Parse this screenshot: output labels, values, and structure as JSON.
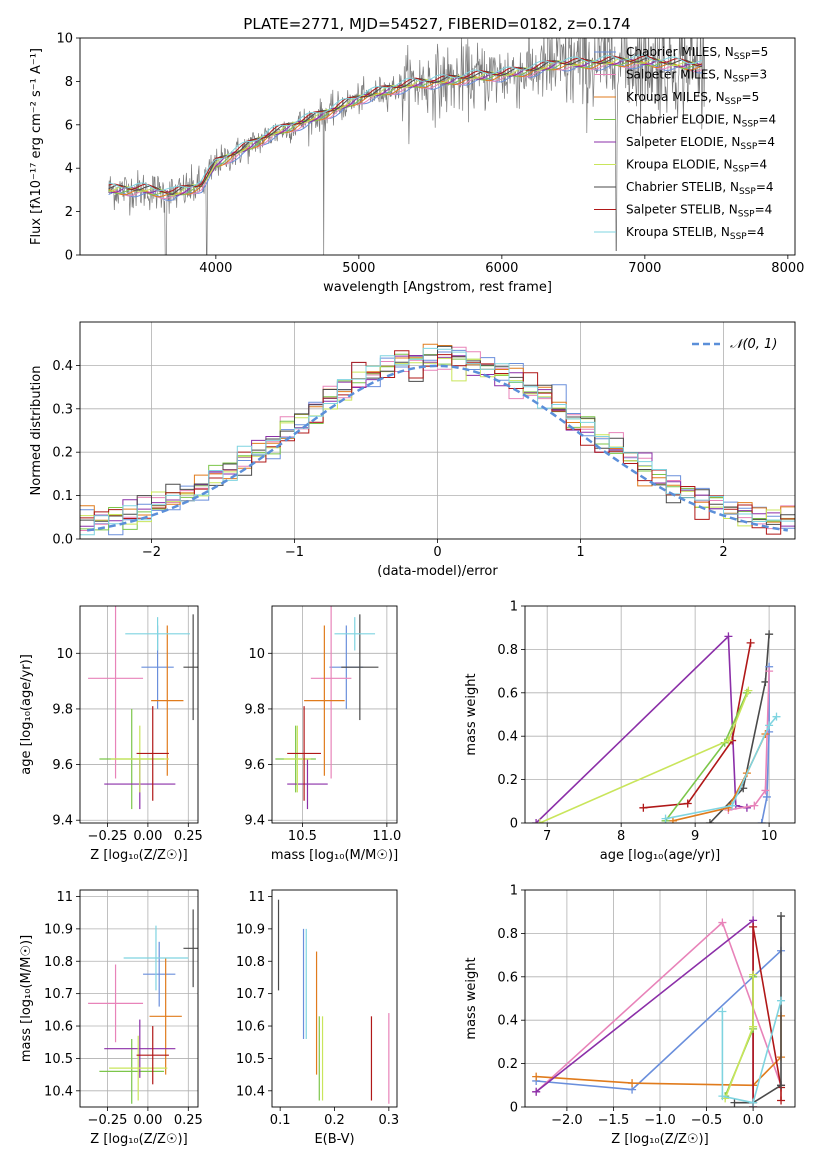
{
  "figure_title": "PLATE=2771, MJD=54527, FIBERID=0182, z=0.174",
  "colors": {
    "Chabrier MILES": "#6a8fdc",
    "Salpeter MILES": "#e883b9",
    "Kroupa MILES": "#e07b1c",
    "Chabrier ELODIE": "#7cc64a",
    "Salpeter ELODIE": "#8b2fa8",
    "Kroupa ELODIE": "#c9e55b",
    "Chabrier STELIB": "#4a4a4a",
    "Salpeter STELIB": "#b01818",
    "Kroupa STELIB": "#7fd4e0",
    "gauss": "#5b8fd9",
    "data": "#7a7a7a"
  },
  "chart_data": [
    {
      "id": "spectrum",
      "type": "line",
      "xlabel": "wavelength [Angstrom, rest frame]",
      "ylabel": "Flux [fλ10⁻¹⁷ erg cm⁻² s⁻¹ A⁻¹]",
      "xlim": [
        3050,
        8050
      ],
      "ylim": [
        0,
        10
      ],
      "xticks": [
        4000,
        5000,
        6000,
        7000,
        8000
      ],
      "yticks": [
        0,
        2,
        4,
        6,
        8,
        10
      ],
      "legend_position": "top-right",
      "legend": [
        {
          "name": "Chabrier MILES",
          "ssp": "5"
        },
        {
          "name": "Salpeter MILES",
          "ssp": "3"
        },
        {
          "name": "Kroupa MILES",
          "ssp": "5"
        },
        {
          "name": "Chabrier ELODIE",
          "ssp": "4"
        },
        {
          "name": "Salpeter ELODIE",
          "ssp": "4"
        },
        {
          "name": "Kroupa ELODIE",
          "ssp": "4"
        },
        {
          "name": "Chabrier STELIB",
          "ssp": "4"
        },
        {
          "name": "Salpeter STELIB",
          "ssp": "4"
        },
        {
          "name": "Kroupa STELIB",
          "ssp": "4"
        }
      ],
      "continuum": {
        "x": [
          3250,
          3500,
          3700,
          3900,
          4000,
          4200,
          4400,
          4600,
          4800,
          5000,
          5200,
          5400,
          5600,
          5800,
          6000,
          6200,
          6400,
          6600,
          6800,
          7000,
          7200,
          7400
        ],
        "y": [
          3.0,
          3.0,
          2.8,
          3.2,
          4.2,
          4.9,
          5.6,
          6.1,
          6.6,
          7.2,
          7.6,
          7.9,
          8.0,
          8.2,
          8.3,
          8.5,
          8.8,
          8.8,
          8.9,
          8.9,
          8.8,
          8.7
        ]
      }
    },
    {
      "id": "residual-histogram",
      "type": "bar",
      "xlabel": "(data-model)/error",
      "ylabel": "Normed distribution",
      "xlim": [
        -2.5,
        2.5
      ],
      "ylim": [
        0,
        0.5
      ],
      "xticks": [
        -2,
        -1,
        0,
        1,
        2
      ],
      "yticks": [
        0.0,
        0.1,
        0.2,
        0.3,
        0.4
      ],
      "legend_label": "𝒩(0, 1)",
      "bin_width": 0.1
    },
    {
      "id": "age-vs-Z",
      "type": "scatter",
      "xlabel": "Z [log₁₀(Z/Z☉)]",
      "ylabel": "age  [log₁₀(age/yr)]",
      "xlim": [
        -0.42,
        0.31
      ],
      "ylim": [
        9.39,
        10.17
      ],
      "xticks": [
        -0.25,
        0.0,
        0.25
      ],
      "xticklabels": [
        "−0.25",
        "0.00",
        "0.25"
      ],
      "yticks": [
        9.4,
        9.6,
        9.8,
        10.0
      ],
      "points": [
        {
          "name": "Chabrier MILES",
          "x": 0.06,
          "y": 9.95,
          "xerr": 0.1,
          "yerr": 0.15
        },
        {
          "name": "Salpeter MILES",
          "x": -0.2,
          "y": 9.91,
          "xerr": 0.17,
          "yerr": 0.36
        },
        {
          "name": "Kroupa MILES",
          "x": 0.12,
          "y": 9.83,
          "xerr": 0.1,
          "yerr": 0.27
        },
        {
          "name": "Chabrier ELODIE",
          "x": -0.1,
          "y": 9.62,
          "xerr": 0.2,
          "yerr": 0.18
        },
        {
          "name": "Salpeter ELODIE",
          "x": -0.05,
          "y": 9.53,
          "xerr": 0.22,
          "yerr": 0.09
        },
        {
          "name": "Kroupa ELODIE",
          "x": -0.05,
          "y": 9.62,
          "xerr": 0.18,
          "yerr": 0.12
        },
        {
          "name": "Chabrier STELIB",
          "x": 0.28,
          "y": 9.95,
          "xerr": 0.06,
          "yerr": 0.19
        },
        {
          "name": "Salpeter STELIB",
          "x": 0.03,
          "y": 9.64,
          "xerr": 0.1,
          "yerr": 0.17
        },
        {
          "name": "Kroupa STELIB",
          "x": 0.06,
          "y": 10.07,
          "xerr": 0.2,
          "yerr": 0.06
        }
      ]
    },
    {
      "id": "age-vs-mass",
      "type": "scatter",
      "xlabel": "mass [log₁₀(M/M☉)]",
      "ylabel": "",
      "xlim": [
        10.32,
        11.06
      ],
      "ylim": [
        9.39,
        10.17
      ],
      "xticks": [
        10.5,
        11.0
      ],
      "xticklabels": [
        "10.5",
        "11.0"
      ],
      "yticks": [
        9.4,
        9.6,
        9.8,
        10.0
      ],
      "points": [
        {
          "name": "Chabrier MILES",
          "x": 10.76,
          "y": 9.95,
          "xerr": 0.1,
          "yerr": 0.15
        },
        {
          "name": "Salpeter MILES",
          "x": 10.67,
          "y": 9.91,
          "xerr": 0.12,
          "yerr": 0.36
        },
        {
          "name": "Kroupa MILES",
          "x": 10.63,
          "y": 9.83,
          "xerr": 0.12,
          "yerr": 0.27
        },
        {
          "name": "Chabrier ELODIE",
          "x": 10.46,
          "y": 9.62,
          "xerr": 0.12,
          "yerr": 0.12
        },
        {
          "name": "Salpeter ELODIE",
          "x": 10.53,
          "y": 9.53,
          "xerr": 0.12,
          "yerr": 0.09
        },
        {
          "name": "Kroupa ELODIE",
          "x": 10.47,
          "y": 9.62,
          "xerr": 0.08,
          "yerr": 0.12
        },
        {
          "name": "Chabrier STELIB",
          "x": 10.84,
          "y": 9.95,
          "xerr": 0.11,
          "yerr": 0.19
        },
        {
          "name": "Salpeter STELIB",
          "x": 10.51,
          "y": 9.64,
          "xerr": 0.1,
          "yerr": 0.17
        },
        {
          "name": "Kroupa STELIB",
          "x": 10.81,
          "y": 10.07,
          "xerr": 0.12,
          "yerr": 0.06
        }
      ]
    },
    {
      "id": "weight-vs-age",
      "type": "line",
      "xlabel": "age  [log₁₀(age/yr)]",
      "ylabel": "mass weight",
      "xlim": [
        6.7,
        10.35
      ],
      "ylim": [
        0,
        1
      ],
      "xticks": [
        7,
        8,
        9,
        10
      ],
      "yticks": [
        0.0,
        0.2,
        0.4,
        0.6,
        0.8,
        1.0
      ],
      "series": [
        {
          "name": "Salpeter ELODIE",
          "x": [
            6.85,
            9.45,
            9.55,
            9.7
          ],
          "y": [
            0.0,
            0.86,
            0.08,
            0.07
          ]
        },
        {
          "name": "Salpeter STELIB",
          "x": [
            8.3,
            8.9,
            9.5,
            9.75
          ],
          "y": [
            0.07,
            0.09,
            0.38,
            0.83
          ]
        },
        {
          "name": "Chabrier STELIB",
          "x": [
            9.2,
            9.65,
            9.95,
            10.0
          ],
          "y": [
            0.0,
            0.16,
            0.65,
            0.87
          ]
        },
        {
          "name": "Chabrier MILES",
          "x": [
            9.9,
            9.97,
            10.0,
            10.0
          ],
          "y": [
            0.0,
            0.12,
            0.42,
            0.72
          ]
        },
        {
          "name": "Salpeter MILES",
          "x": [
            9.45,
            9.8,
            9.95,
            10.0
          ],
          "y": [
            0.06,
            0.08,
            0.15,
            0.7
          ]
        },
        {
          "name": "Kroupa MILES",
          "x": [
            8.7,
            9.45,
            9.7,
            9.95
          ],
          "y": [
            0.01,
            0.07,
            0.23,
            0.41
          ]
        },
        {
          "name": "Chabrier ELODIE",
          "x": [
            8.6,
            9.4,
            9.7
          ],
          "y": [
            0.01,
            0.37,
            0.6
          ]
        },
        {
          "name": "Kroupa ELODIE",
          "x": [
            6.9,
            9.45,
            9.72
          ],
          "y": [
            0.0,
            0.38,
            0.61
          ]
        },
        {
          "name": "Kroupa STELIB",
          "x": [
            8.6,
            9.5,
            10.0,
            10.1
          ],
          "y": [
            0.02,
            0.08,
            0.45,
            0.49
          ]
        }
      ]
    },
    {
      "id": "mass-vs-Z",
      "type": "scatter",
      "xlabel": "Z [log₁₀(Z/Z☉)]",
      "ylabel": "mass [log₁₀(M/M☉)]",
      "xlim": [
        -0.42,
        0.31
      ],
      "ylim": [
        10.35,
        11.02
      ],
      "xticks": [
        -0.25,
        0.0,
        0.25
      ],
      "xticklabels": [
        "−0.25",
        "0.00",
        "0.25"
      ],
      "yticks": [
        10.4,
        10.5,
        10.6,
        10.7,
        10.8,
        10.9,
        11.0
      ],
      "points": [
        {
          "name": "Chabrier MILES",
          "x": 0.07,
          "y": 10.76,
          "xerr": 0.1,
          "yerr": 0.1
        },
        {
          "name": "Salpeter MILES",
          "x": -0.2,
          "y": 10.67,
          "xerr": 0.17,
          "yerr": 0.12
        },
        {
          "name": "Kroupa MILES",
          "x": 0.11,
          "y": 10.63,
          "xerr": 0.1,
          "yerr": 0.18
        },
        {
          "name": "Chabrier ELODIE",
          "x": -0.1,
          "y": 10.46,
          "xerr": 0.2,
          "yerr": 0.1
        },
        {
          "name": "Salpeter ELODIE",
          "x": -0.05,
          "y": 10.53,
          "xerr": 0.22,
          "yerr": 0.09
        },
        {
          "name": "Kroupa ELODIE",
          "x": -0.06,
          "y": 10.47,
          "xerr": 0.18,
          "yerr": 0.1
        },
        {
          "name": "Chabrier STELIB",
          "x": 0.28,
          "y": 10.84,
          "xerr": 0.06,
          "yerr": 0.12
        },
        {
          "name": "Salpeter STELIB",
          "x": 0.03,
          "y": 10.51,
          "xerr": 0.1,
          "yerr": 0.09
        },
        {
          "name": "Kroupa STELIB",
          "x": 0.05,
          "y": 10.81,
          "xerr": 0.2,
          "yerr": 0.1
        }
      ]
    },
    {
      "id": "mass-vs-EBV",
      "type": "scatter",
      "xlabel": "E(B-V)",
      "ylabel": "",
      "xlim": [
        0.085,
        0.315
      ],
      "ylim": [
        10.35,
        11.02
      ],
      "xticks": [
        0.1,
        0.2,
        0.3
      ],
      "xticklabels": [
        "0.1",
        "0.2",
        "0.3"
      ],
      "yticks": [
        10.4,
        10.5,
        10.6,
        10.7,
        10.8,
        10.9,
        11.0
      ],
      "points": [
        {
          "name": "Chabrier STELIB",
          "x": 0.097,
          "y": 10.85,
          "xerr": 0,
          "yerr": 0.14
        },
        {
          "name": "Chabrier MILES",
          "x": 0.143,
          "y": 10.73,
          "xerr": 0,
          "yerr": 0.17
        },
        {
          "name": "Kroupa STELIB",
          "x": 0.148,
          "y": 10.73,
          "xerr": 0,
          "yerr": 0.17
        },
        {
          "name": "Kroupa MILES",
          "x": 0.167,
          "y": 10.64,
          "xerr": 0,
          "yerr": 0.19
        },
        {
          "name": "Chabrier ELODIE",
          "x": 0.172,
          "y": 10.5,
          "xerr": 0,
          "yerr": 0.13
        },
        {
          "name": "Kroupa ELODIE",
          "x": 0.178,
          "y": 10.5,
          "xerr": 0,
          "yerr": 0.13
        },
        {
          "name": "Salpeter STELIB",
          "x": 0.268,
          "y": 10.5,
          "xerr": 0,
          "yerr": 0.13
        },
        {
          "name": "Salpeter MILES",
          "x": 0.3,
          "y": 10.5,
          "xerr": 0,
          "yerr": 0.14
        }
      ]
    },
    {
      "id": "weight-vs-Z",
      "type": "line",
      "xlabel": "Z [log₁₀(Z/Z☉)]",
      "ylabel": "mass weight",
      "xlim": [
        -2.45,
        0.45
      ],
      "ylim": [
        0,
        1
      ],
      "xticks": [
        -2.0,
        -1.5,
        -1.0,
        -0.5,
        0.0
      ],
      "xticklabels": [
        "−2.0",
        "−1.5",
        "−1.0",
        "−0.5",
        "0.0"
      ],
      "yticks": [
        0.0,
        0.2,
        0.4,
        0.6,
        0.8,
        1.0
      ],
      "series": [
        {
          "name": "Chabrier MILES",
          "x": [
            -2.33,
            -1.3,
            0.3
          ],
          "y": [
            0.12,
            0.08,
            0.72
          ]
        },
        {
          "name": "Salpeter MILES",
          "x": [
            -2.33,
            -0.33,
            0.3
          ],
          "y": [
            0.07,
            0.85,
            0.1
          ]
        },
        {
          "name": "Kroupa MILES",
          "x": [
            -2.33,
            -1.3,
            0.0,
            0.3,
            0.3
          ],
          "y": [
            0.14,
            0.11,
            0.1,
            0.23,
            0.42
          ]
        },
        {
          "name": "Salpeter ELODIE",
          "x": [
            -2.33,
            0.0,
            0.0
          ],
          "y": [
            0.07,
            0.86,
            0.0
          ]
        },
        {
          "name": "Salpeter STELIB",
          "x": [
            0.0,
            0.0,
            0.3,
            0.3
          ],
          "y": [
            0.0,
            0.83,
            0.09,
            0.03
          ]
        },
        {
          "name": "Chabrier STELIB",
          "x": [
            -0.2,
            0.0,
            0.3,
            0.3
          ],
          "y": [
            0.02,
            0.02,
            0.1,
            0.88
          ]
        },
        {
          "name": "Chabrier ELODIE",
          "x": [
            -0.3,
            0.0,
            0.0
          ],
          "y": [
            0.05,
            0.36,
            0.6
          ]
        },
        {
          "name": "Kroupa ELODIE",
          "x": [
            -0.3,
            0.0,
            0.0
          ],
          "y": [
            0.04,
            0.37,
            0.61
          ]
        },
        {
          "name": "Kroupa STELIB",
          "x": [
            -0.33,
            -0.33,
            0.0,
            0.3
          ],
          "y": [
            0.44,
            0.05,
            0.02,
            0.49
          ]
        }
      ]
    }
  ]
}
